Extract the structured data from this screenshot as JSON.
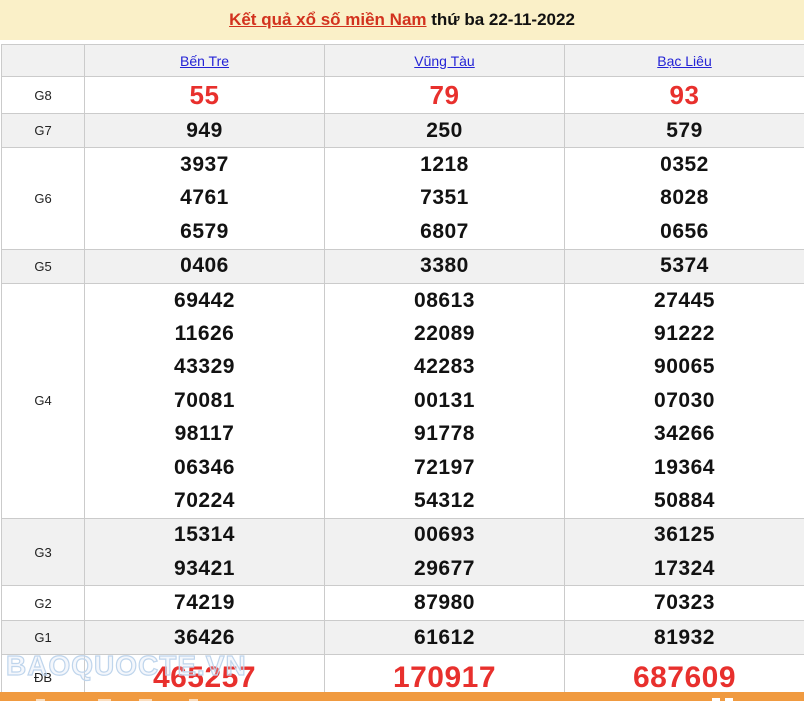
{
  "header": {
    "title_link": "Kết quả xổ số miền Nam",
    "title_date": "thứ ba 22-11-2022"
  },
  "table": {
    "provinces": [
      "Bến Tre",
      "Vũng Tàu",
      "Bạc Liêu"
    ],
    "rows": [
      {
        "label": "G8",
        "style": "g8",
        "values": [
          [
            "55"
          ],
          [
            "79"
          ],
          [
            "93"
          ]
        ]
      },
      {
        "label": "G7",
        "style": "normal",
        "values": [
          [
            "949"
          ],
          [
            "250"
          ],
          [
            "579"
          ]
        ]
      },
      {
        "label": "G6",
        "style": "normal",
        "values": [
          [
            "3937",
            "4761",
            "6579"
          ],
          [
            "1218",
            "7351",
            "6807"
          ],
          [
            "0352",
            "8028",
            "0656"
          ]
        ]
      },
      {
        "label": "G5",
        "style": "normal",
        "values": [
          [
            "0406"
          ],
          [
            "3380"
          ],
          [
            "5374"
          ]
        ]
      },
      {
        "label": "G4",
        "style": "normal",
        "values": [
          [
            "69442",
            "11626",
            "43329",
            "70081",
            "98117",
            "06346",
            "70224"
          ],
          [
            "08613",
            "22089",
            "42283",
            "00131",
            "91778",
            "72197",
            "54312"
          ],
          [
            "27445",
            "91222",
            "90065",
            "07030",
            "34266",
            "19364",
            "50884"
          ]
        ]
      },
      {
        "label": "G3",
        "style": "normal",
        "values": [
          [
            "15314",
            "93421"
          ],
          [
            "00693",
            "29677"
          ],
          [
            "36125",
            "17324"
          ]
        ]
      },
      {
        "label": "G2",
        "style": "normal",
        "values": [
          [
            "74219"
          ],
          [
            "87980"
          ],
          [
            "70323"
          ]
        ]
      },
      {
        "label": "G1",
        "style": "normal",
        "values": [
          [
            "36426"
          ],
          [
            "61612"
          ],
          [
            "81932"
          ]
        ]
      },
      {
        "label": "ĐB",
        "style": "db",
        "values": [
          [
            "465257"
          ],
          [
            "170917"
          ],
          [
            "687609"
          ]
        ]
      }
    ]
  },
  "watermark": "BAOQUOCTE.VN",
  "colors": {
    "title_bar_bg": "#FAF0C8",
    "title_link_red": "#D2321E",
    "highlight_number_red": "#E8302D",
    "province_link_blue": "#2423D6",
    "alt_row_gray": "#F1F1F1",
    "border_gray": "#CBCBCB",
    "bottom_bar_orange": "#F09A40"
  }
}
